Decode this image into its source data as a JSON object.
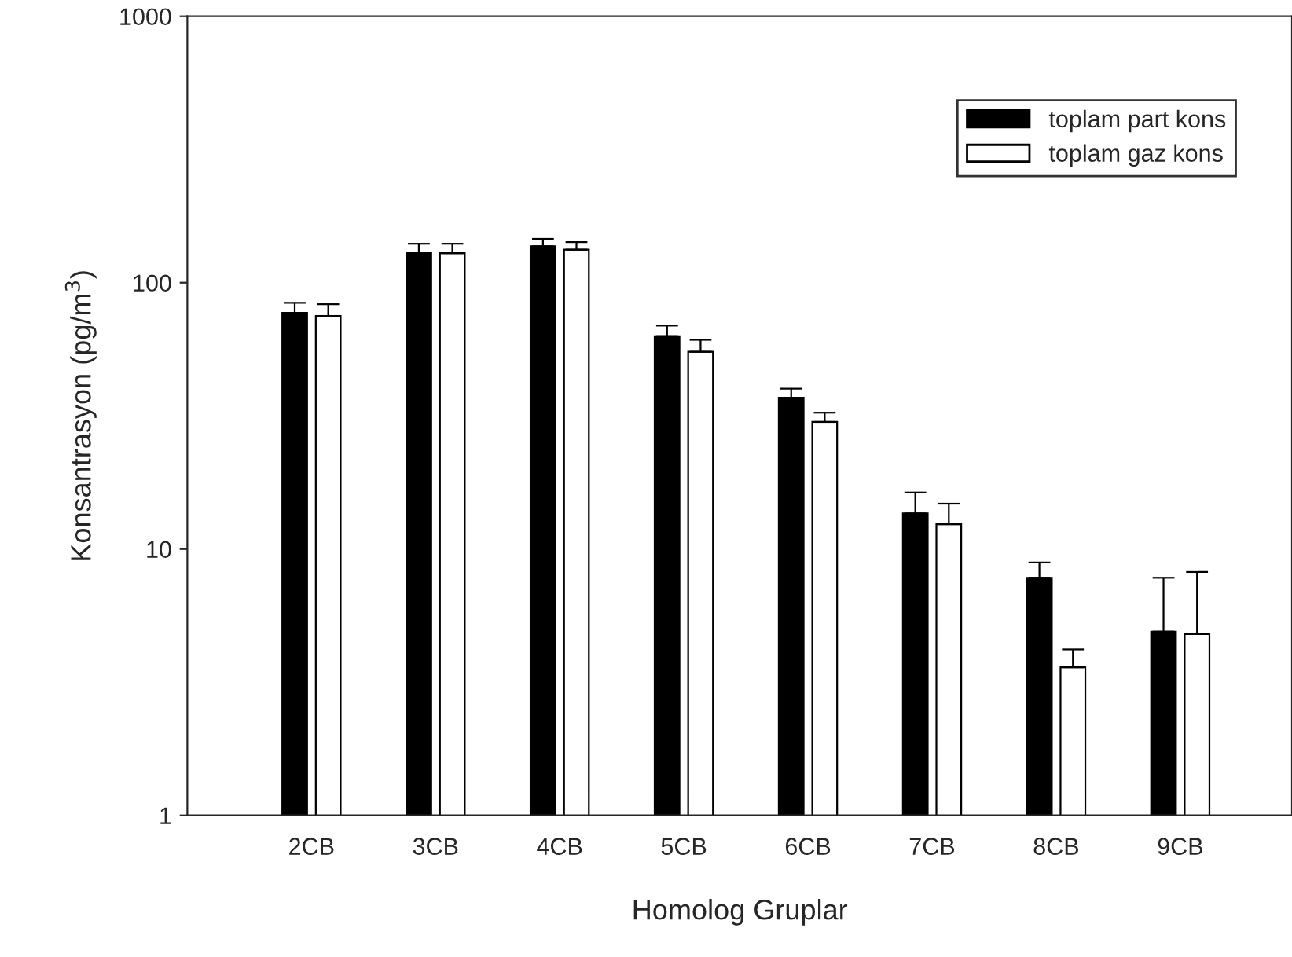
{
  "chart_data": {
    "type": "bar",
    "xlabel": "Homolog Gruplar",
    "ylabel": "Konsantrasyon (pg/m$^{3}$)",
    "categories": [
      "2CB",
      "3CB",
      "4CB",
      "5CB",
      "6CB",
      "7CB",
      "8CB",
      "9CB"
    ],
    "series": [
      {
        "name": "toplam part kons",
        "color": "#000000",
        "values": [
          77,
          129,
          137,
          63,
          37,
          13.6,
          7.8,
          4.9
        ],
        "errors": [
          [
            77,
            84
          ],
          [
            129,
            140
          ],
          [
            137,
            146
          ],
          [
            63,
            69
          ],
          [
            37,
            40
          ],
          [
            13.6,
            16.3
          ],
          [
            7.8,
            8.9
          ],
          [
            4.9,
            7.8
          ]
        ]
      },
      {
        "name": "toplam gaz kons",
        "color": "#ffffff",
        "values": [
          75,
          129,
          133,
          55,
          30,
          12.4,
          3.6,
          4.8
        ],
        "errors": [
          [
            75,
            83
          ],
          [
            129,
            140
          ],
          [
            133,
            142
          ],
          [
            55,
            61
          ],
          [
            30,
            32.5
          ],
          [
            12.4,
            14.8
          ],
          [
            3.6,
            4.2
          ],
          [
            4.8,
            8.2
          ]
        ]
      }
    ],
    "log": true,
    "ylim": [
      1,
      1000
    ],
    "yticks": [
      1,
      10,
      100,
      1000
    ],
    "grid": false,
    "legend": "top right"
  }
}
